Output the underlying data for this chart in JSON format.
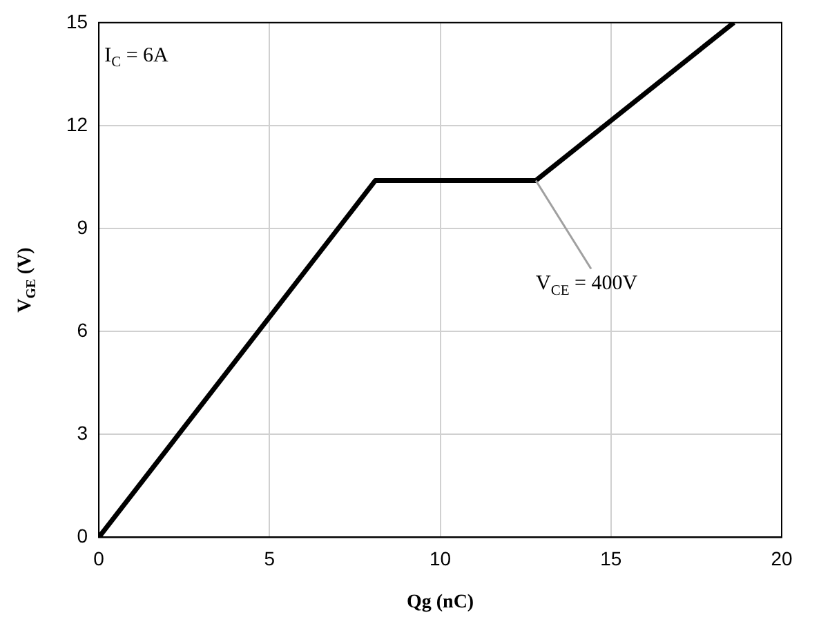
{
  "chart_data": {
    "type": "line",
    "xlabel": "Qg (nC)",
    "ylabel": "V$_{GE}$ (V)",
    "x": [
      0,
      8.1,
      12.8,
      18.6
    ],
    "series": [
      {
        "color": "#000000",
        "values": [
          0,
          10.4,
          10.4,
          15
        ]
      }
    ],
    "xlim": [
      0,
      20
    ],
    "xticks": [
      0,
      5,
      10,
      15,
      20
    ],
    "ylim": [
      0,
      15
    ],
    "yticks": [
      0,
      3,
      6,
      9,
      12,
      15
    ],
    "grid": true,
    "legend": false,
    "marker": "none",
    "line_style": "solid",
    "annotations": [
      "I$_{C}$ = 6A",
      {
        "text": "V$_{CE}$ = 400V",
        "x": 12.8,
        "y": 10.4
      }
    ]
  }
}
